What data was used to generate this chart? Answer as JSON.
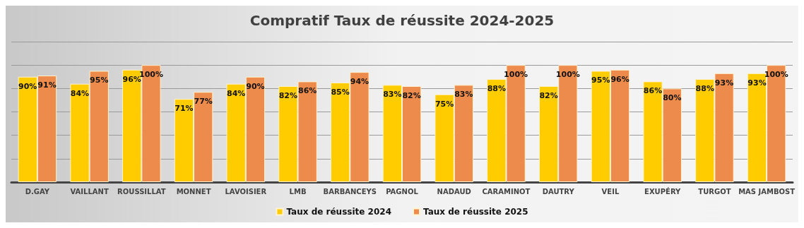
{
  "chart_data": {
    "type": "bar",
    "title": "Compratif Taux de réussite 2024-2025",
    "categories": [
      "D.GAY",
      "VAILLANT",
      "ROUSSILLAT",
      "MONNET",
      "LAVOISIER",
      "LMB",
      "BARBANCEYS",
      "PAGNOL",
      "NADAUD",
      "CARAMINOT",
      "DAUTRY",
      "VEIL",
      "EXUPÉRY",
      "TURGOT",
      "MAS JAMBOST"
    ],
    "series": [
      {
        "name": "Taux de réussite 2024",
        "color": "#ffcc00",
        "values": [
          90,
          84,
          96,
          71,
          84,
          82,
          85,
          83,
          75,
          88,
          82,
          95,
          86,
          88,
          93
        ],
        "value_labels": [
          "90%",
          "84%",
          "96%",
          "71%",
          "84%",
          "82%",
          "85%",
          "83%",
          "75%",
          "88%",
          "82%",
          "95%",
          "86%",
          "88%",
          "93%"
        ]
      },
      {
        "name": "Taux de réussite 2025",
        "color": "#ed8b4c",
        "values": [
          91,
          95,
          100,
          77,
          90,
          86,
          94,
          82,
          83,
          100,
          100,
          96,
          80,
          93,
          100
        ],
        "value_labels": [
          "91%",
          "95%",
          "100%",
          "77%",
          "90%",
          "86%",
          "94%",
          "82%",
          "83%",
          "100%",
          "100%",
          "96%",
          "80%",
          "93%",
          "100%"
        ]
      }
    ],
    "ylim": [
      0,
      120
    ],
    "yticks": [
      {
        "value": 0,
        "label": null
      },
      {
        "value": 20,
        "label": null
      },
      {
        "value": 40,
        "label": null
      },
      {
        "value": 60,
        "label": null
      },
      {
        "value": 80,
        "label": null
      },
      {
        "value": 100,
        "label": null
      },
      {
        "value": 120,
        "label": null
      }
    ],
    "tick_labels": "x",
    "grid": "y",
    "legend": "bottom"
  }
}
